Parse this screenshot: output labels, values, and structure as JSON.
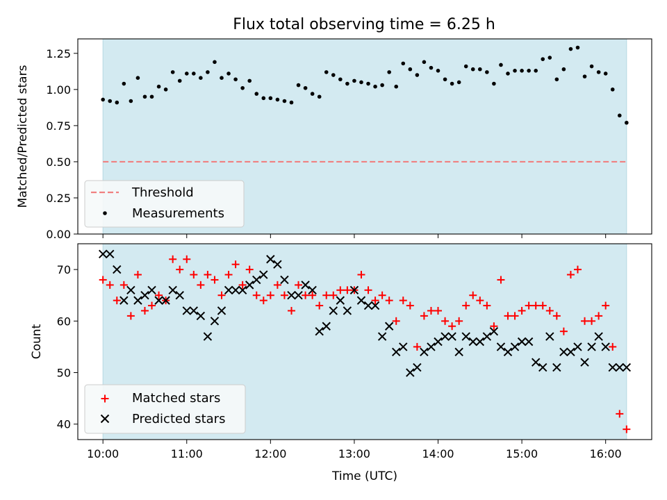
{
  "chart_data": [
    {
      "type": "scatter",
      "title": "Flux total observing time = 6.25 h",
      "ylabel": "Matched/Predicted stars",
      "ylim": [
        0,
        1.35
      ],
      "yticks": [
        "0.00",
        "0.25",
        "0.50",
        "0.75",
        "1.00",
        "1.25"
      ],
      "shaded_span": [
        "10:00",
        "16:15"
      ],
      "shade_color": "#d3eaf1",
      "threshold": {
        "name": "Threshold",
        "value": 0.5,
        "color": "#f08080",
        "style": "dashed"
      },
      "series": [
        {
          "name": "Measurements",
          "color": "#000000",
          "marker": "dot",
          "x": [
            "10:00",
            "10:05",
            "10:10",
            "10:15",
            "10:20",
            "10:25",
            "10:30",
            "10:35",
            "10:40",
            "10:45",
            "10:50",
            "10:55",
            "11:00",
            "11:05",
            "11:10",
            "11:15",
            "11:20",
            "11:25",
            "11:30",
            "11:35",
            "11:40",
            "11:45",
            "11:50",
            "11:55",
            "12:00",
            "12:05",
            "12:10",
            "12:15",
            "12:20",
            "12:25",
            "12:30",
            "12:35",
            "12:40",
            "12:45",
            "12:50",
            "12:55",
            "13:00",
            "13:05",
            "13:10",
            "13:15",
            "13:20",
            "13:25",
            "13:30",
            "13:35",
            "13:40",
            "13:45",
            "13:50",
            "13:55",
            "14:00",
            "14:05",
            "14:10",
            "14:15",
            "14:20",
            "14:25",
            "14:30",
            "14:35",
            "14:40",
            "14:45",
            "14:50",
            "14:55",
            "15:00",
            "15:05",
            "15:10",
            "15:15",
            "15:20",
            "15:25",
            "15:30",
            "15:35",
            "15:40",
            "15:45",
            "15:50",
            "15:55",
            "16:00",
            "16:05",
            "16:10",
            "16:15"
          ],
          "y": [
            0.93,
            0.92,
            0.91,
            1.04,
            0.92,
            1.08,
            0.95,
            0.95,
            1.02,
            1.0,
            1.12,
            1.06,
            1.11,
            1.11,
            1.08,
            1.12,
            1.19,
            1.08,
            1.11,
            1.07,
            1.01,
            1.06,
            0.97,
            0.94,
            0.94,
            0.93,
            0.92,
            0.91,
            1.03,
            1.01,
            0.97,
            0.95,
            1.12,
            1.1,
            1.07,
            1.04,
            1.06,
            1.05,
            1.04,
            1.02,
            1.03,
            1.12,
            1.02,
            1.18,
            1.14,
            1.1,
            1.19,
            1.15,
            1.13,
            1.07,
            1.04,
            1.05,
            1.16,
            1.14,
            1.14,
            1.12,
            1.04,
            1.17,
            1.11,
            1.13,
            1.13,
            1.13,
            1.13,
            1.21,
            1.22,
            1.07,
            1.14,
            1.28,
            1.29,
            1.09,
            1.16,
            1.12,
            1.11,
            1.0,
            0.82,
            0.77
          ]
        }
      ]
    },
    {
      "type": "scatter",
      "xlabel": "Time (UTC)",
      "ylabel": "Count",
      "ylim": [
        37,
        75
      ],
      "yticks": [
        "40",
        "50",
        "60",
        "70"
      ],
      "xticks": [
        "10:00",
        "11:00",
        "12:00",
        "13:00",
        "14:00",
        "15:00",
        "16:00"
      ],
      "xlim": [
        "09:42",
        "16:33"
      ],
      "shaded_span": [
        "10:00",
        "16:15"
      ],
      "shade_color": "#d3eaf1",
      "x": [
        "10:00",
        "10:05",
        "10:10",
        "10:15",
        "10:20",
        "10:25",
        "10:30",
        "10:35",
        "10:40",
        "10:45",
        "10:50",
        "10:55",
        "11:00",
        "11:05",
        "11:10",
        "11:15",
        "11:20",
        "11:25",
        "11:30",
        "11:35",
        "11:40",
        "11:45",
        "11:50",
        "11:55",
        "12:00",
        "12:05",
        "12:10",
        "12:15",
        "12:20",
        "12:25",
        "12:30",
        "12:35",
        "12:40",
        "12:45",
        "12:50",
        "12:55",
        "13:00",
        "13:05",
        "13:10",
        "13:15",
        "13:20",
        "13:25",
        "13:30",
        "13:35",
        "13:40",
        "13:45",
        "13:50",
        "13:55",
        "14:00",
        "14:05",
        "14:10",
        "14:15",
        "14:20",
        "14:25",
        "14:30",
        "14:35",
        "14:40",
        "14:45",
        "14:50",
        "14:55",
        "15:00",
        "15:05",
        "15:10",
        "15:15",
        "15:20",
        "15:25",
        "15:30",
        "15:35",
        "15:40",
        "15:45",
        "15:50",
        "15:55",
        "16:00",
        "16:05",
        "16:10",
        "16:15"
      ],
      "series": [
        {
          "name": "Matched stars",
          "color": "#ff0000",
          "marker": "plus",
          "values": [
            68,
            67,
            64,
            67,
            61,
            69,
            62,
            63,
            65,
            64,
            72,
            70,
            72,
            69,
            67,
            69,
            68,
            65,
            69,
            71,
            67,
            70,
            65,
            64,
            65,
            67,
            65,
            62,
            67,
            65,
            65,
            63,
            65,
            65,
            66,
            66,
            66,
            69,
            66,
            64,
            65,
            64,
            60,
            64,
            63,
            55,
            61,
            62,
            62,
            60,
            59,
            60,
            63,
            65,
            64,
            63,
            59,
            68,
            61,
            61,
            62,
            63,
            63,
            63,
            62,
            61,
            58,
            69,
            70,
            60,
            60,
            61,
            63,
            55,
            42,
            39
          ]
        },
        {
          "name": "Predicted stars",
          "color": "#000000",
          "marker": "x",
          "values": [
            73,
            73,
            70,
            64,
            66,
            64,
            65,
            66,
            64,
            64,
            66,
            65,
            62,
            62,
            61,
            57,
            60,
            62,
            66,
            66,
            66,
            67,
            68,
            69,
            72,
            71,
            68,
            65,
            65,
            67,
            66,
            58,
            59,
            62,
            64,
            62,
            66,
            64,
            63,
            63,
            57,
            59,
            54,
            55,
            50,
            51,
            54,
            55,
            56,
            57,
            57,
            54,
            57,
            56,
            56,
            57,
            58,
            55,
            54,
            55,
            56,
            56,
            52,
            51,
            57,
            51,
            54,
            54,
            55,
            52,
            55,
            57,
            55,
            51,
            51,
            51
          ]
        }
      ]
    }
  ]
}
